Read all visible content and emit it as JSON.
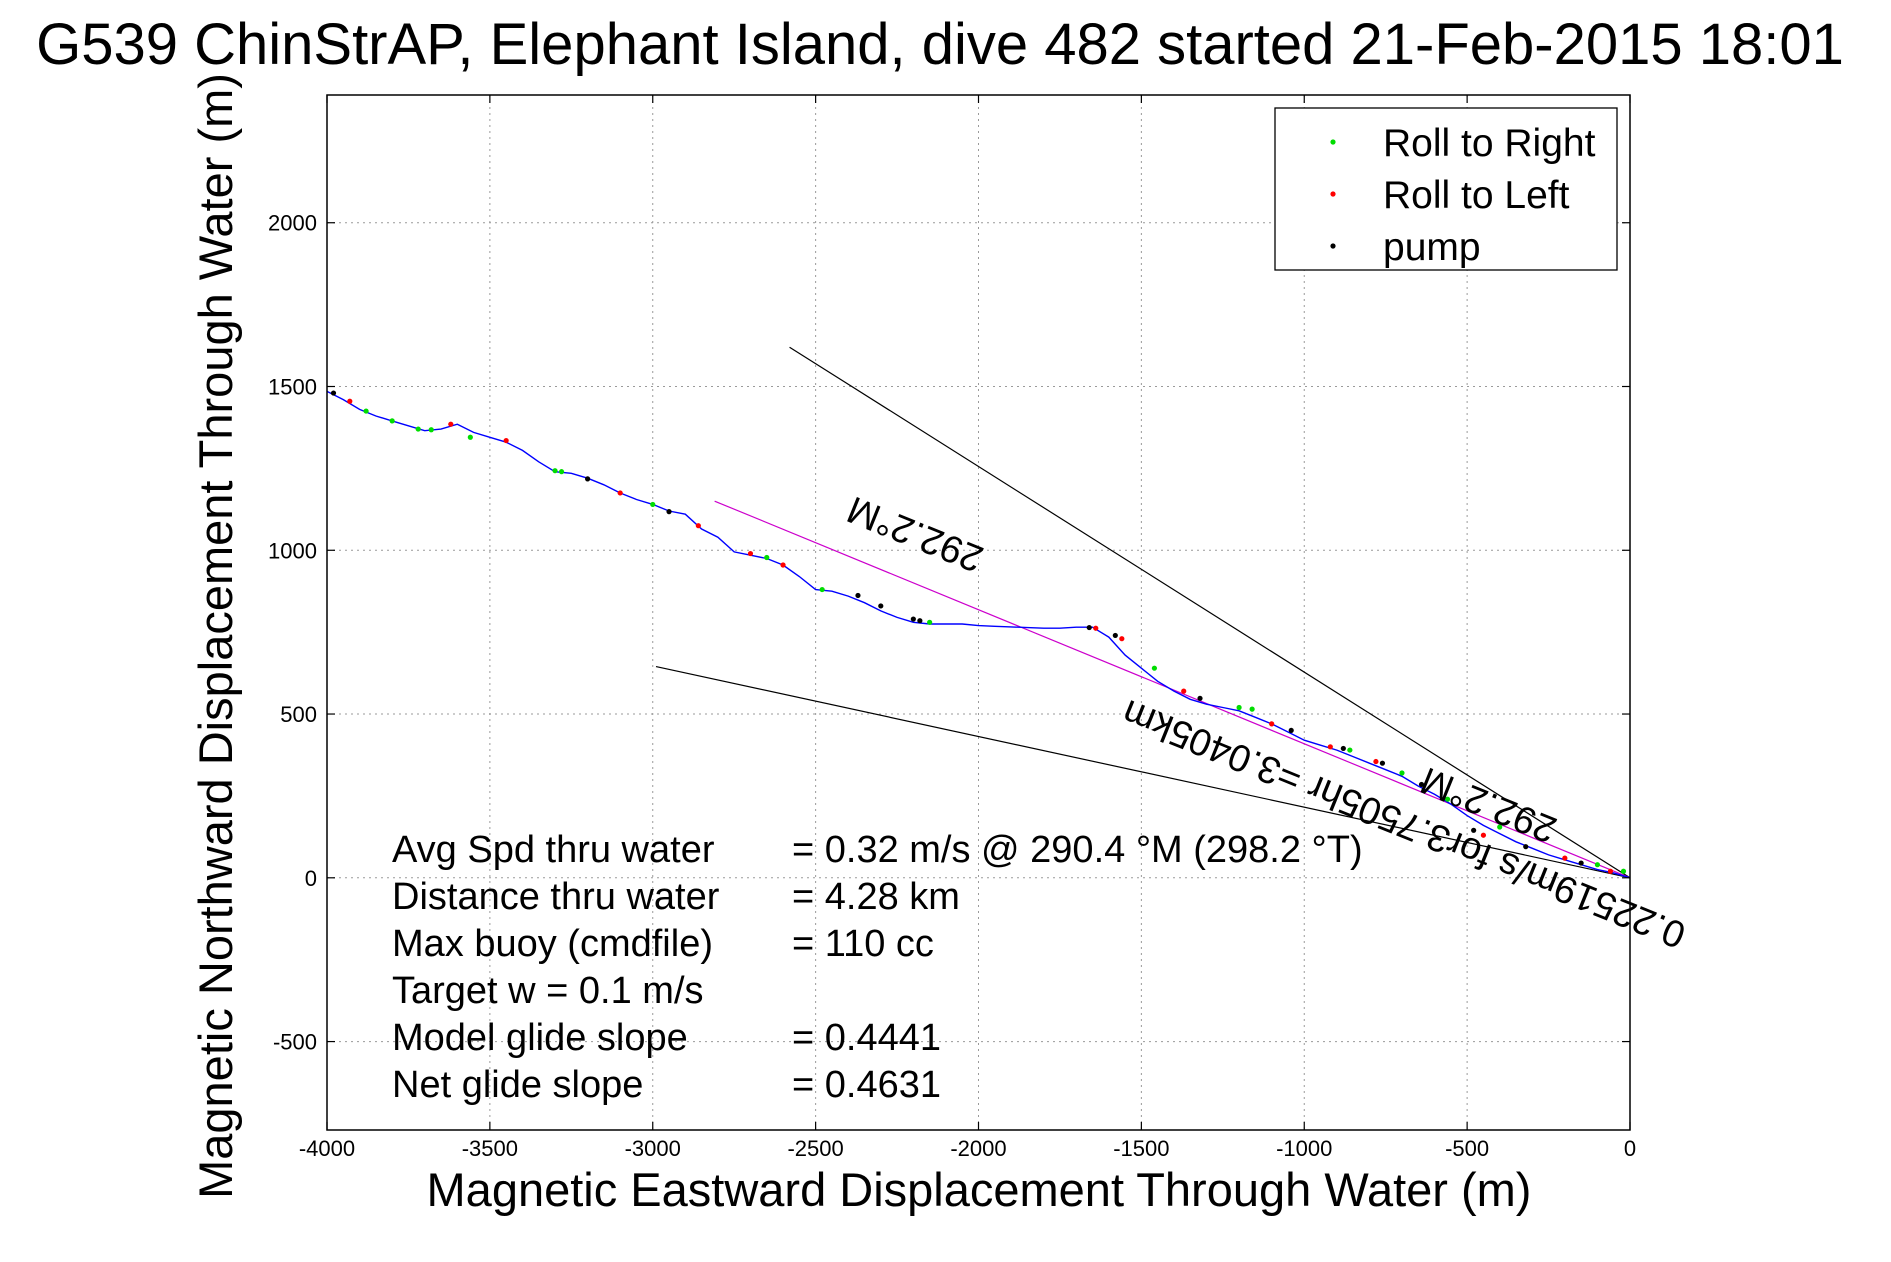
{
  "chart_data": {
    "type": "line",
    "title": "G539 ChinStrAP, Elephant Island, dive 482 started 21-Feb-2015 18:01",
    "xlabel": "Magnetic Eastward Displacement Through Water (m)",
    "ylabel": "Magnetic Northward Displacement Through Water (m)",
    "xlim": [
      -4000,
      0
    ],
    "ylim": [
      -770,
      2390
    ],
    "x_ticks": [
      -4000,
      -3500,
      -3000,
      -2500,
      -2000,
      -1500,
      -1000,
      -500,
      0
    ],
    "x_tick_labels": [
      "-4000",
      "-3500",
      "-3000",
      "-2500",
      "-2000",
      "-1500",
      "-1000",
      "-500",
      "0"
    ],
    "y_ticks": [
      -500,
      0,
      500,
      1000,
      1500,
      2000
    ],
    "y_tick_labels": [
      "-500",
      "0",
      "500",
      "1000",
      "1500",
      "2000"
    ],
    "grid": true,
    "legend_position": "top-right",
    "series": [
      {
        "name": "",
        "color": "#0000ff",
        "style": "line",
        "x": [
          -4000,
          -3950,
          -3900,
          -3850,
          -3800,
          -3750,
          -3700,
          -3650,
          -3600,
          -3550,
          -3500,
          -3450,
          -3400,
          -3350,
          -3300,
          -3250,
          -3200,
          -3150,
          -3100,
          -3050,
          -3000,
          -2950,
          -2900,
          -2850,
          -2800,
          -2750,
          -2700,
          -2650,
          -2600,
          -2550,
          -2500,
          -2450,
          -2400,
          -2350,
          -2300,
          -2250,
          -2200,
          -2150,
          -2100,
          -2050,
          -2000,
          -1950,
          -1900,
          -1850,
          -1800,
          -1750,
          -1700,
          -1650,
          -1600,
          -1550,
          -1500,
          -1450,
          -1400,
          -1350,
          -1300,
          -1250,
          -1200,
          -1150,
          -1100,
          -1050,
          -1000,
          -950,
          -900,
          -850,
          -800,
          -750,
          -700,
          -650,
          -600,
          -550,
          -500,
          -450,
          -400,
          -350,
          -300,
          -250,
          -200,
          -150,
          -100,
          -50,
          0
        ],
        "y": [
          1485,
          1460,
          1430,
          1410,
          1395,
          1380,
          1365,
          1370,
          1385,
          1360,
          1345,
          1330,
          1305,
          1270,
          1240,
          1235,
          1220,
          1200,
          1175,
          1155,
          1140,
          1120,
          1110,
          1065,
          1040,
          995,
          985,
          975,
          955,
          920,
          880,
          875,
          860,
          840,
          815,
          795,
          780,
          775,
          775,
          775,
          770,
          768,
          766,
          764,
          762,
          762,
          765,
          765,
          735,
          680,
          640,
          600,
          570,
          545,
          530,
          520,
          510,
          490,
          470,
          445,
          420,
          405,
          390,
          370,
          350,
          330,
          310,
          280,
          255,
          225,
          190,
          160,
          135,
          110,
          90,
          70,
          55,
          40,
          25,
          15,
          0
        ]
      },
      {
        "name": "Roll to Right",
        "color": "#00dd00",
        "style": "dots",
        "x": [
          -3880,
          -3800,
          -3720,
          -3680,
          -3560,
          -3300,
          -3280,
          -3000,
          -2650,
          -2480,
          -2150,
          -1460,
          -1200,
          -1160,
          -860,
          -700,
          -560,
          -400,
          -100,
          -20
        ],
        "y": [
          1425,
          1395,
          1370,
          1368,
          1345,
          1243,
          1240,
          1140,
          978,
          880,
          780,
          640,
          520,
          515,
          390,
          320,
          240,
          155,
          40,
          20
        ]
      },
      {
        "name": "Roll to Left",
        "color": "#ff0000",
        "style": "dots",
        "x": [
          -3930,
          -3620,
          -3450,
          -3100,
          -2860,
          -2700,
          -2600,
          -1640,
          -1560,
          -1370,
          -1100,
          -920,
          -780,
          -450,
          -200,
          -60
        ],
        "y": [
          1455,
          1385,
          1335,
          1175,
          1075,
          990,
          955,
          762,
          730,
          570,
          470,
          400,
          355,
          130,
          60,
          20
        ]
      },
      {
        "name": "pump",
        "color": "#000000",
        "style": "dots",
        "x": [
          -3980,
          -3200,
          -2950,
          -2370,
          -2300,
          -2200,
          -2180,
          -1660,
          -1580,
          -1320,
          -1040,
          -880,
          -760,
          -640,
          -480,
          -320,
          -150
        ],
        "y": [
          1480,
          1218,
          1118,
          862,
          830,
          790,
          785,
          764,
          740,
          548,
          450,
          395,
          350,
          285,
          145,
          95,
          45
        ]
      }
    ],
    "reference_lines": [
      {
        "color": "#000000",
        "x": [
          -2580,
          0
        ],
        "y": [
          1620,
          0
        ]
      },
      {
        "color": "#000000",
        "x": [
          -2990,
          0
        ],
        "y": [
          645,
          0
        ]
      },
      {
        "color": "#cc00cc",
        "x": [
          -2810,
          0
        ],
        "y": [
          1150,
          0
        ]
      }
    ],
    "line_labels": [
      {
        "text": "292.2°M",
        "x": -2180,
        "y": 1085,
        "rotation": 202
      },
      {
        "text": "0.22519m/s for3.7505hr =3.0405km",
        "x": -680,
        "y": 200,
        "rotation": 202
      },
      {
        "text": "292.2°M",
        "x": -420,
        "y": 258,
        "rotation": 202
      }
    ],
    "annotations": [
      {
        "label": "Avg Spd thru water",
        "value": "=  0.32 m/s @ 290.4 °M (298.2 °T)"
      },
      {
        "label": "Distance thru water",
        "value": "=  4.28 km"
      },
      {
        "label": "Max buoy (cmdfile)",
        "value": "= 110 cc"
      },
      {
        "label": "Target w    = 0.1 m/s",
        "value": ""
      },
      {
        "label": "Model glide slope",
        "value": "= 0.4441"
      },
      {
        "label": "Net glide slope",
        "value": "= 0.4631"
      }
    ]
  }
}
